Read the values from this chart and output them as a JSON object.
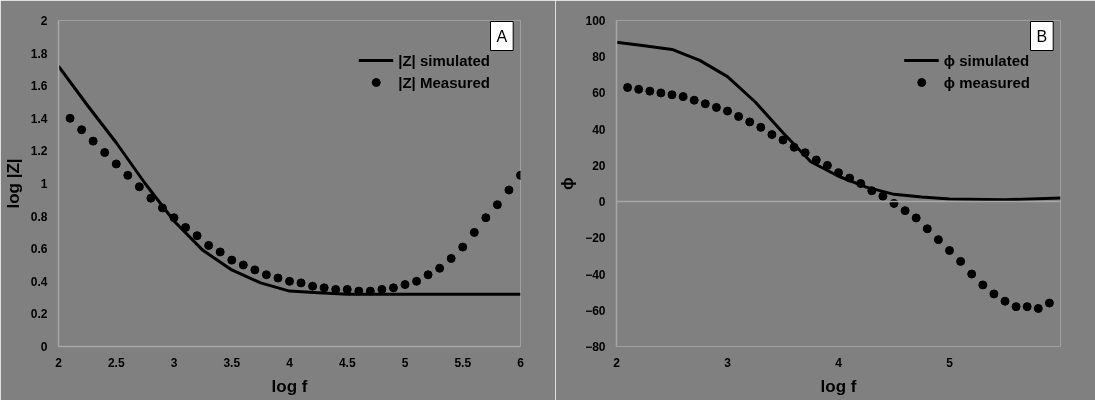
{
  "chart_data": [
    {
      "type": "line",
      "xlabel": "log f",
      "ylabel": "log |Z|",
      "annotations": [
        "A"
      ],
      "xlim": [
        2,
        6
      ],
      "ylim": [
        0,
        2
      ],
      "xticks": [
        2,
        2.5,
        3,
        3.5,
        4,
        4.5,
        5,
        5.5,
        6
      ],
      "yticks": [
        0,
        0.2,
        0.4,
        0.6,
        0.8,
        1,
        1.2,
        1.4,
        1.6,
        1.8,
        2
      ],
      "grid": false,
      "legend": "top right",
      "series": [
        {
          "name": "|Z| simulated",
          "type": "line",
          "color": "#000000",
          "line_style": "solid",
          "x": [
            2,
            2.25,
            2.5,
            2.75,
            3,
            3.25,
            3.5,
            3.75,
            4,
            4.25,
            4.5,
            5,
            5.5,
            6
          ],
          "values": [
            1.72,
            1.48,
            1.25,
            1.0,
            0.77,
            0.59,
            0.47,
            0.39,
            0.34,
            0.33,
            0.32,
            0.32,
            0.32,
            0.32
          ]
        },
        {
          "name": "|Z| Measured",
          "type": "scatter",
          "marker": "circle",
          "color": "#000000",
          "x": [
            2.1,
            2.2,
            2.3,
            2.4,
            2.5,
            2.6,
            2.7,
            2.8,
            2.9,
            3.0,
            3.1,
            3.2,
            3.3,
            3.4,
            3.5,
            3.6,
            3.7,
            3.8,
            3.9,
            4.0,
            4.1,
            4.2,
            4.3,
            4.4,
            4.5,
            4.6,
            4.7,
            4.8,
            4.9,
            5.0,
            5.1,
            5.2,
            5.3,
            5.4,
            5.5,
            5.6,
            5.7,
            5.8,
            5.9,
            6.0
          ],
          "values": [
            1.4,
            1.33,
            1.26,
            1.19,
            1.12,
            1.05,
            0.98,
            0.91,
            0.85,
            0.79,
            0.73,
            0.68,
            0.62,
            0.58,
            0.53,
            0.5,
            0.47,
            0.44,
            0.42,
            0.4,
            0.39,
            0.37,
            0.36,
            0.35,
            0.35,
            0.34,
            0.34,
            0.35,
            0.36,
            0.38,
            0.4,
            0.44,
            0.48,
            0.54,
            0.61,
            0.7,
            0.79,
            0.87,
            0.96,
            1.05
          ]
        }
      ]
    },
    {
      "type": "line",
      "xlabel": "log f",
      "ylabel": "ϕ",
      "annotations": [
        "B"
      ],
      "xlim": [
        2,
        6
      ],
      "ylim": [
        -80,
        100
      ],
      "xticks": [
        2,
        3,
        4,
        5
      ],
      "yticks": [
        -80,
        -60,
        -40,
        -20,
        0,
        20,
        40,
        60,
        80,
        100
      ],
      "ref_lines": [
        {
          "axis": "y",
          "value": 0,
          "color": "#a6a6a6"
        }
      ],
      "grid": false,
      "legend": "top right",
      "series": [
        {
          "name": "ϕ simulated",
          "type": "line",
          "color": "#000000",
          "line_style": "solid",
          "x": [
            2,
            2.25,
            2.5,
            2.75,
            3,
            3.25,
            3.5,
            3.75,
            4,
            4.25,
            4.5,
            4.75,
            5,
            5.5,
            6
          ],
          "values": [
            88,
            86,
            84,
            78,
            69,
            55,
            38,
            22,
            14,
            8,
            4,
            2.5,
            1.5,
            1,
            2
          ]
        },
        {
          "name": "ϕ measured",
          "type": "scatter",
          "marker": "circle",
          "color": "#000000",
          "x": [
            2.1,
            2.2,
            2.3,
            2.4,
            2.5,
            2.6,
            2.7,
            2.8,
            2.9,
            3.0,
            3.1,
            3.2,
            3.3,
            3.4,
            3.5,
            3.6,
            3.7,
            3.8,
            3.9,
            4.0,
            4.1,
            4.2,
            4.3,
            4.4,
            4.5,
            4.6,
            4.7,
            4.8,
            4.9,
            5.0,
            5.1,
            5.2,
            5.3,
            5.4,
            5.5,
            5.6,
            5.7,
            5.8,
            5.9
          ],
          "values": [
            63,
            62,
            61,
            60,
            59,
            58,
            56,
            54,
            52,
            50,
            47,
            44,
            41,
            37,
            34,
            30,
            27,
            23,
            20,
            16,
            13,
            10,
            6,
            3,
            -1,
            -5,
            -9,
            -15,
            -21,
            -27,
            -33,
            -40,
            -46,
            -51,
            -55,
            -58,
            -58,
            -59,
            -56
          ]
        }
      ]
    }
  ]
}
